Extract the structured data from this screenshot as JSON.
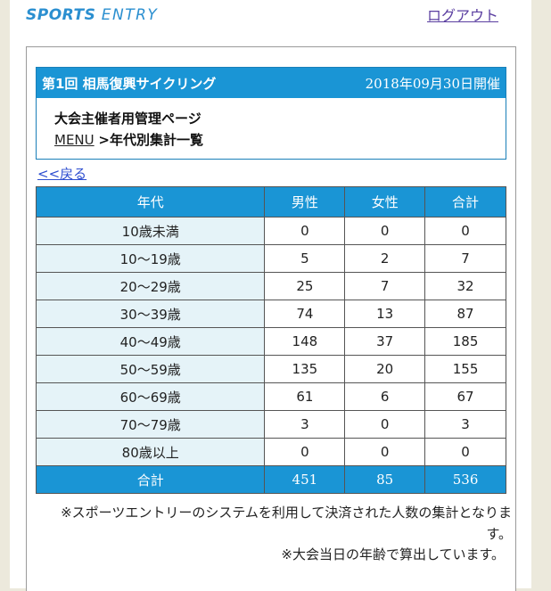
{
  "header": {
    "logo_main": "SPORTS",
    "logo_sub": "ENTRY",
    "logout_label": "ログアウト"
  },
  "event": {
    "name": "第1回 相馬復興サイクリング",
    "date": "2018年09月30日開催"
  },
  "info": {
    "admin_title": "大会主催者用管理ページ",
    "menu_label": "MENU",
    "separator": ">",
    "current_page": "年代別集計一覧"
  },
  "back_label": "<<戻る",
  "table": {
    "headers": [
      "年代",
      "男性",
      "女性",
      "合計"
    ],
    "rows": [
      [
        "10歳未満",
        "0",
        "0",
        "0"
      ],
      [
        "10～19歳",
        "5",
        "2",
        "7"
      ],
      [
        "20～29歳",
        "25",
        "7",
        "32"
      ],
      [
        "30～39歳",
        "74",
        "13",
        "87"
      ],
      [
        "40～49歳",
        "148",
        "37",
        "185"
      ],
      [
        "50～59歳",
        "135",
        "20",
        "155"
      ],
      [
        "60～69歳",
        "61",
        "6",
        "67"
      ],
      [
        "70～79歳",
        "3",
        "0",
        "3"
      ],
      [
        "80歳以上",
        "0",
        "0",
        "0"
      ]
    ],
    "total": [
      "合計",
      "451",
      "85",
      "536"
    ]
  },
  "notes": {
    "note1": "※スポーツエントリーのシステムを利用して決済された人数の集計となります。",
    "note2": "※大会当日の年齢で算出しています。"
  },
  "colors": {
    "accent": "#1a95d5",
    "label_cell": "#e5f3f8",
    "logo": "#2b8fd0",
    "logout": "#5a3ea0",
    "link": "#2f4fd0",
    "background": "#ece9dc"
  }
}
